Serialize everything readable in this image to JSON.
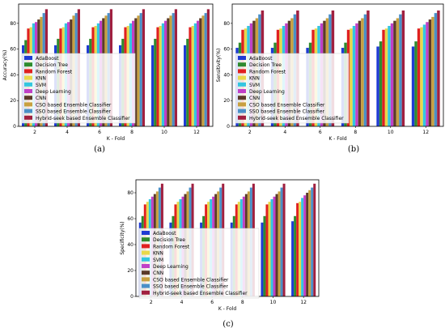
{
  "figure": {
    "colors": [
      "#1f3bd4",
      "#2e8b2e",
      "#e02020",
      "#e8d84a",
      "#33c6e0",
      "#c040c8",
      "#5a3a2a",
      "#c8a040",
      "#4a90c8",
      "#a02040"
    ]
  },
  "chart_data": [
    {
      "type": "bar",
      "caption": "(a)",
      "xlabel": "K - Fold",
      "ylabel": "Accuracy(%)",
      "categories": [
        "2",
        "4",
        "6",
        "8",
        "10",
        "12"
      ],
      "ylim": [
        0,
        95
      ],
      "yticks": [
        0,
        20,
        40,
        60,
        80
      ],
      "grid": false,
      "legend_position": "center-left",
      "series": [
        {
          "name": "AdaBoost",
          "values": [
            63,
            63,
            63,
            63,
            63,
            63
          ]
        },
        {
          "name": "Decision Tree",
          "values": [
            67,
            68,
            68,
            68,
            68,
            68
          ]
        },
        {
          "name": "Random Forest",
          "values": [
            76,
            76,
            77,
            77,
            77,
            77
          ]
        },
        {
          "name": "KNN",
          "values": [
            77,
            77,
            78,
            78,
            78,
            78
          ]
        },
        {
          "name": "SVM",
          "values": [
            80,
            80,
            80,
            80,
            80,
            80
          ]
        },
        {
          "name": "Deep Learning",
          "values": [
            81,
            81,
            82,
            82,
            82,
            82
          ]
        },
        {
          "name": "CNN",
          "values": [
            83,
            83,
            84,
            84,
            84,
            84
          ]
        },
        {
          "name": "CSO based Ensemble Classifier",
          "values": [
            85,
            86,
            86,
            86,
            86,
            86
          ]
        },
        {
          "name": "SSO based Ensemble Classifier",
          "values": [
            88,
            88,
            88,
            88,
            88,
            88
          ]
        },
        {
          "name": "Hybrid-seek based Ensemble Classifier",
          "values": [
            91,
            91,
            91,
            91,
            91,
            91
          ]
        }
      ]
    },
    {
      "type": "bar",
      "caption": "(b)",
      "xlabel": "K - Fold",
      "ylabel": "Sensitivity(%)",
      "categories": [
        "2",
        "4",
        "6",
        "8",
        "10",
        "12"
      ],
      "ylim": [
        0,
        95
      ],
      "yticks": [
        0,
        20,
        40,
        60,
        80
      ],
      "grid": false,
      "legend_position": "center-left",
      "series": [
        {
          "name": "AdaBoost",
          "values": [
            61,
            61,
            61,
            61,
            62,
            62
          ]
        },
        {
          "name": "Decision Tree",
          "values": [
            65,
            65,
            65,
            65,
            66,
            66
          ]
        },
        {
          "name": "Random Forest",
          "values": [
            75,
            75,
            75,
            75,
            75,
            76
          ]
        },
        {
          "name": "KNN",
          "values": [
            76,
            76,
            76,
            76,
            76,
            77
          ]
        },
        {
          "name": "SVM",
          "values": [
            78,
            78,
            78,
            78,
            78,
            79
          ]
        },
        {
          "name": "Deep Learning",
          "values": [
            80,
            80,
            80,
            80,
            80,
            81
          ]
        },
        {
          "name": "CNN",
          "values": [
            82,
            82,
            82,
            82,
            82,
            83
          ]
        },
        {
          "name": "CSO based Ensemble Classifier",
          "values": [
            84,
            84,
            84,
            84,
            84,
            85
          ]
        },
        {
          "name": "SSO based Ensemble Classifier",
          "values": [
            87,
            87,
            87,
            87,
            87,
            88
          ]
        },
        {
          "name": "Hybrid-seek based Ensemble Classifier",
          "values": [
            90,
            90,
            90,
            90,
            90,
            90
          ]
        }
      ]
    },
    {
      "type": "bar",
      "caption": "(c)",
      "xlabel": "K - Fold",
      "ylabel": "Specificity(%)",
      "categories": [
        "2",
        "4",
        "6",
        "8",
        "10",
        "12"
      ],
      "ylim": [
        0,
        90
      ],
      "yticks": [
        0,
        20,
        40,
        60,
        80
      ],
      "grid": false,
      "legend_position": "center-left",
      "series": [
        {
          "name": "AdaBoost",
          "values": [
            57,
            57,
            57,
            57,
            57,
            58
          ]
        },
        {
          "name": "Decision Tree",
          "values": [
            62,
            62,
            62,
            62,
            62,
            62
          ]
        },
        {
          "name": "Random Forest",
          "values": [
            71,
            71,
            71,
            71,
            71,
            72
          ]
        },
        {
          "name": "KNN",
          "values": [
            73,
            73,
            73,
            73,
            73,
            73
          ]
        },
        {
          "name": "SVM",
          "values": [
            75,
            75,
            75,
            75,
            75,
            76
          ]
        },
        {
          "name": "Deep Learning",
          "values": [
            77,
            77,
            77,
            77,
            77,
            78
          ]
        },
        {
          "name": "CNN",
          "values": [
            79,
            79,
            79,
            79,
            79,
            80
          ]
        },
        {
          "name": "CSO based Ensemble Classifier",
          "values": [
            81,
            81,
            81,
            81,
            81,
            82
          ]
        },
        {
          "name": "SSO based Ensemble Classifier",
          "values": [
            84,
            84,
            84,
            84,
            84,
            84
          ]
        },
        {
          "name": "Hybrid-seek based Ensemble Classifier",
          "values": [
            87,
            87,
            87,
            87,
            87,
            87
          ]
        }
      ]
    }
  ]
}
